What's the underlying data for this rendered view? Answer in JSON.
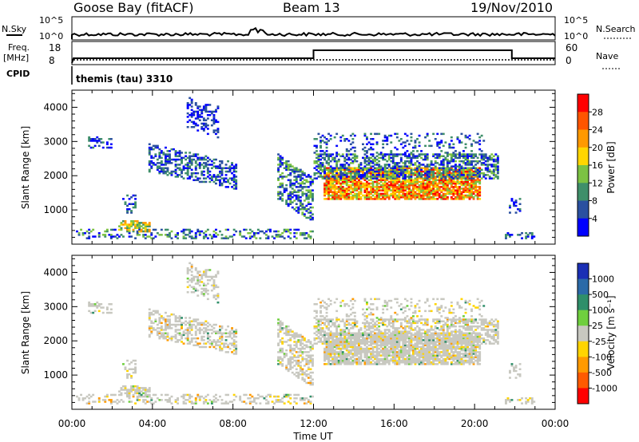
{
  "header": {
    "station": "Goose Bay (fitACF)",
    "beam": "Beam 13",
    "date": "19/Nov/2010"
  },
  "meta_panels": {
    "nsky_label": "N.Sky",
    "nsky_ticks": [
      "10^5",
      "10^0"
    ],
    "nsearch_label": "N.Search",
    "nsearch_ticks": [
      "10^5",
      "10^0"
    ],
    "freq_label": "Freq.",
    "freq_unit": "[MHz]",
    "freq_ticks": [
      "18",
      "8"
    ],
    "nave_label": "Nave",
    "nave_ticks": [
      "60",
      "0"
    ],
    "cpid_label": "CPID",
    "cpid_text": "themis (tau) 3310"
  },
  "chart_data": [
    {
      "type": "heatmap",
      "name": "power",
      "ylabel": "Slant Range [km]",
      "y_ticks": [
        "4000",
        "3000",
        "2000",
        "1000"
      ],
      "colorbar_label": "Power [dB]",
      "colorbar_ticks": [
        "28",
        "24",
        "20",
        "16",
        "12",
        "8",
        "4"
      ],
      "colors": [
        "#0000ff",
        "#2a50a0",
        "#3f8f6a",
        "#7cc243",
        "#ffd600",
        "#ff9900",
        "#ff5500",
        "#ff0000"
      ]
    },
    {
      "type": "heatmap",
      "name": "velocity",
      "xlabel": "Time UT",
      "ylabel": "Slant Range [km]",
      "y_ticks": [
        "4000",
        "3000",
        "2000",
        "1000"
      ],
      "x_ticks": [
        "00:00",
        "04:00",
        "08:00",
        "12:00",
        "16:00",
        "20:00",
        "00:00"
      ],
      "colorbar_label": "Velocity [m s⁻¹]",
      "colorbar_ticks": [
        "1000",
        "500",
        "100",
        "25",
        "-25",
        "-100",
        "-500",
        "-1000"
      ],
      "colors": [
        "#1a2fb5",
        "#2b6aa8",
        "#2f8f6a",
        "#6fcf3e",
        "#c8c8c0",
        "#ffd400",
        "#ff9a00",
        "#ff5a00",
        "#ff0000"
      ]
    }
  ]
}
